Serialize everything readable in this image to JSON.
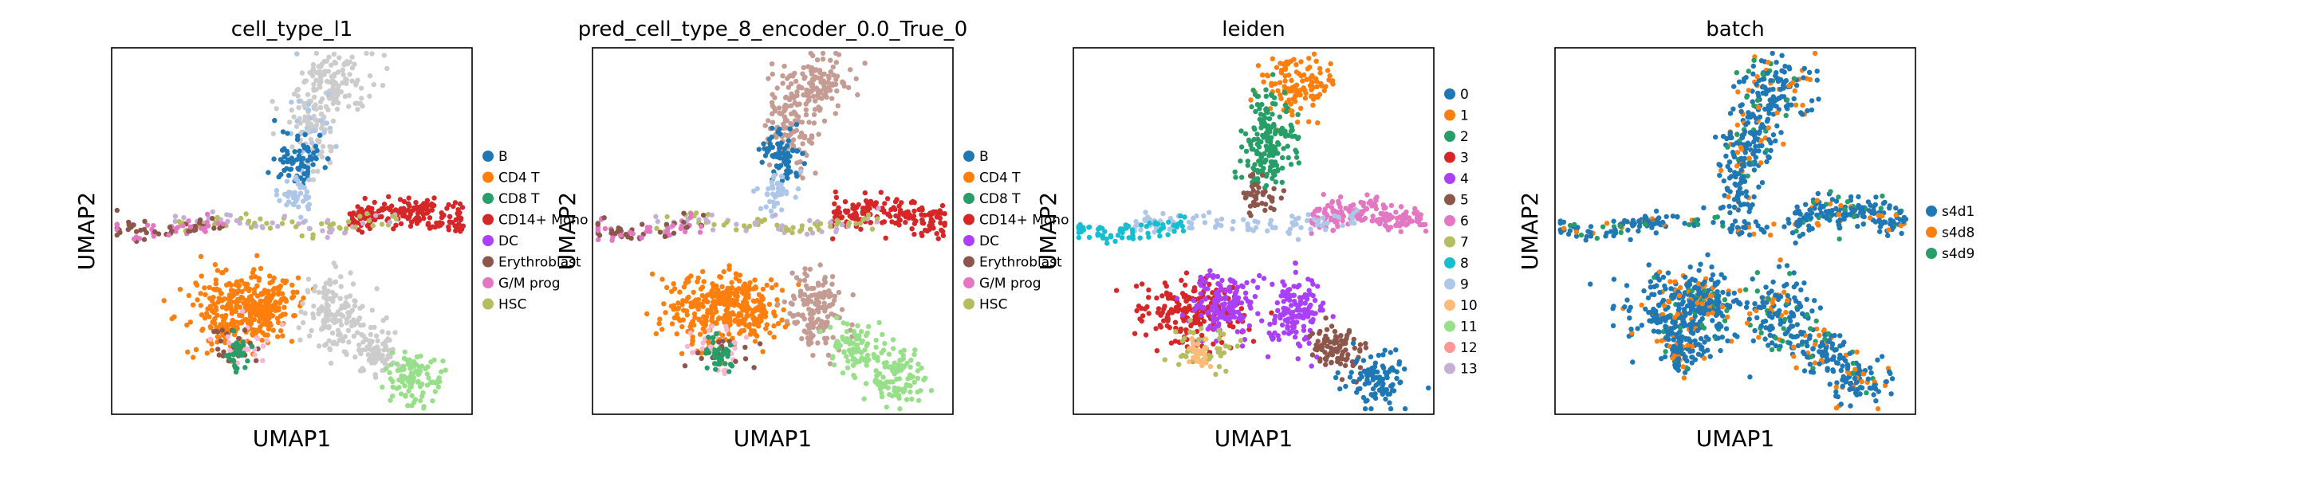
{
  "chart_data": [
    {
      "type": "scatter",
      "title": "cell_type_l1",
      "xlabel": "UMAP1",
      "ylabel": "UMAP2",
      "grid": false,
      "legend_position": "right",
      "legend": [
        {
          "label": "B",
          "color": "#1f77b4"
        },
        {
          "label": "CD4 T",
          "color": "#ff7f0e"
        },
        {
          "label": "CD8 T",
          "color": "#279e68"
        },
        {
          "label": "CD14+ Mono",
          "color": "#d62728"
        },
        {
          "label": "DC",
          "color": "#aa40fc"
        },
        {
          "label": "Erythroblast",
          "color": "#8c564b"
        },
        {
          "label": "G/M prog",
          "color": "#e377c2"
        },
        {
          "label": "HSC",
          "color": "#b5bd61"
        }
      ]
    },
    {
      "type": "scatter",
      "title": "pred_cell_type_8_encoder_0.0_True_0",
      "xlabel": "UMAP1",
      "ylabel": "UMAP2",
      "grid": false,
      "legend_position": "right",
      "legend": [
        {
          "label": "B",
          "color": "#1f77b4"
        },
        {
          "label": "CD4 T",
          "color": "#ff7f0e"
        },
        {
          "label": "CD8 T",
          "color": "#279e68"
        },
        {
          "label": "CD14+ Mono",
          "color": "#d62728"
        },
        {
          "label": "DC",
          "color": "#aa40fc"
        },
        {
          "label": "Erythroblast",
          "color": "#8c564b"
        },
        {
          "label": "G/M prog",
          "color": "#e377c2"
        },
        {
          "label": "HSC",
          "color": "#b5bd61"
        }
      ]
    },
    {
      "type": "scatter",
      "title": "leiden",
      "xlabel": "UMAP1",
      "ylabel": "UMAP2",
      "grid": false,
      "legend_position": "right",
      "legend": [
        {
          "label": "0",
          "color": "#1f77b4"
        },
        {
          "label": "1",
          "color": "#ff7f0e"
        },
        {
          "label": "2",
          "color": "#279e68"
        },
        {
          "label": "3",
          "color": "#d62728"
        },
        {
          "label": "4",
          "color": "#aa40fc"
        },
        {
          "label": "5",
          "color": "#8c564b"
        },
        {
          "label": "6",
          "color": "#e377c2"
        },
        {
          "label": "7",
          "color": "#b5bd61"
        },
        {
          "label": "8",
          "color": "#17becf"
        },
        {
          "label": "9",
          "color": "#aec7e8"
        },
        {
          "label": "10",
          "color": "#ffbb78"
        },
        {
          "label": "11",
          "color": "#98df8a"
        },
        {
          "label": "12",
          "color": "#ff9896"
        },
        {
          "label": "13",
          "color": "#c5b0d5"
        }
      ]
    },
    {
      "type": "scatter",
      "title": "batch",
      "xlabel": "UMAP1",
      "ylabel": "UMAP2",
      "grid": false,
      "legend_position": "right",
      "legend": [
        {
          "label": "s4d1",
          "color": "#1f77b4"
        },
        {
          "label": "s4d8",
          "color": "#ff7f0e"
        },
        {
          "label": "s4d9",
          "color": "#279e68"
        }
      ]
    }
  ]
}
